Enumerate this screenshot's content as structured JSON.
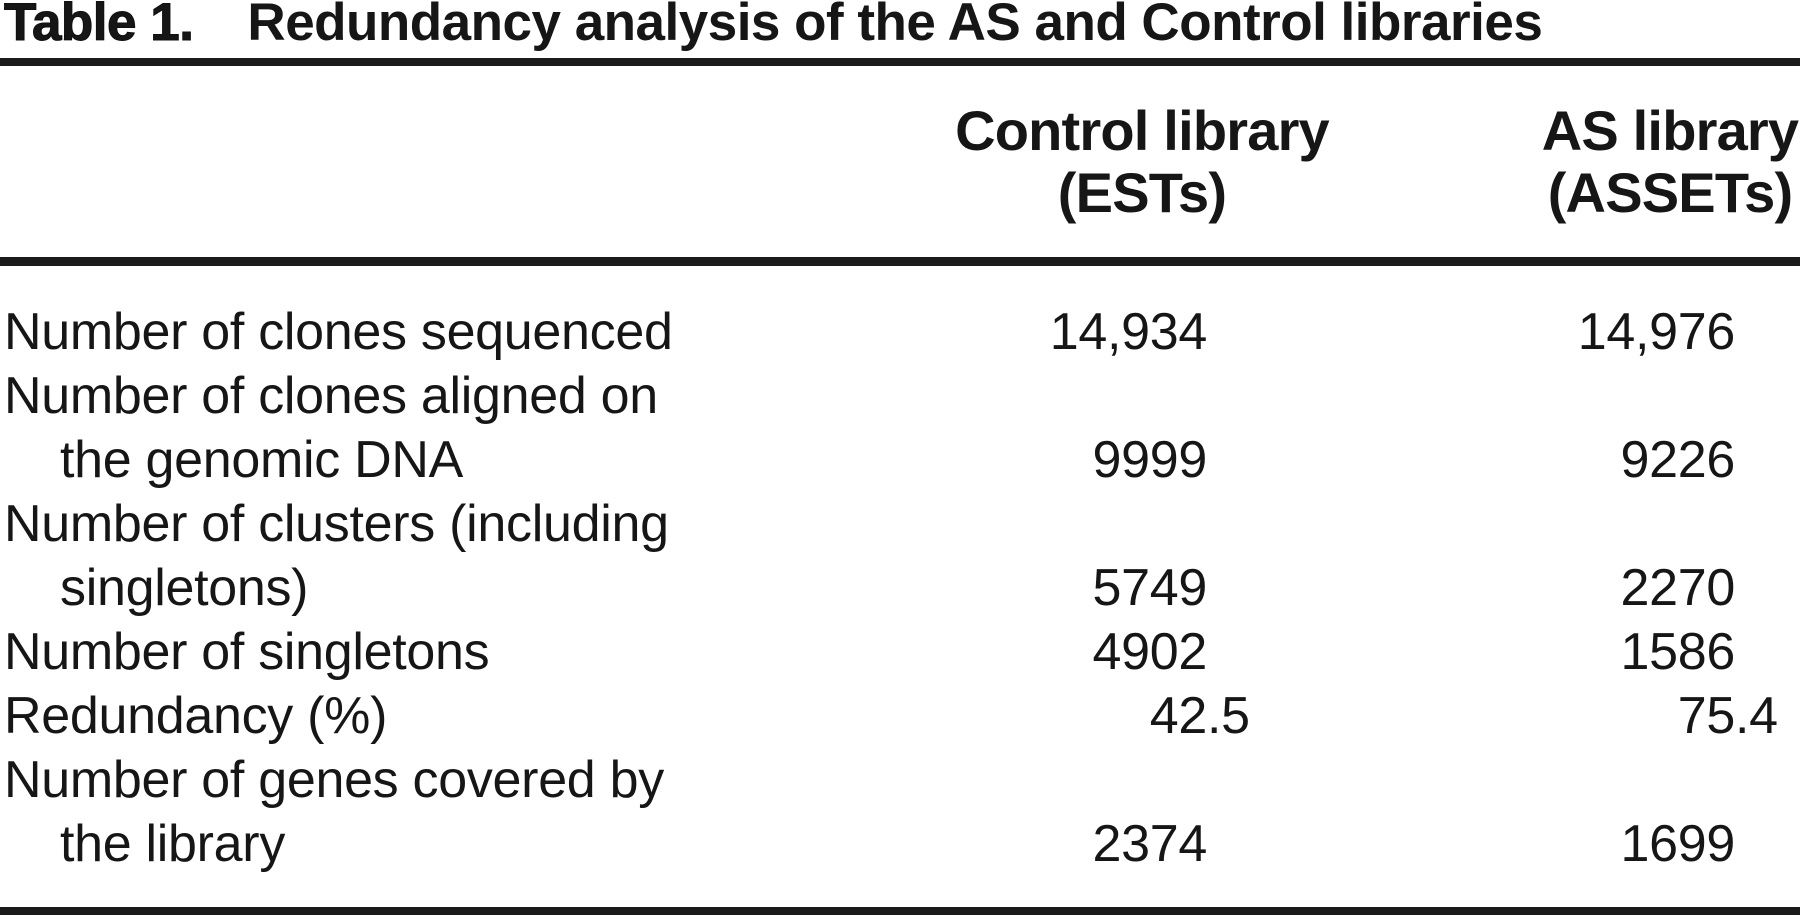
{
  "title": {
    "number": "Table 1.",
    "caption": "Redundancy analysis of the AS and Control libraries"
  },
  "table": {
    "columns": [
      {
        "id": "control",
        "lines": [
          "Control library",
          "(ESTs)"
        ]
      },
      {
        "id": "as",
        "lines": [
          "AS library",
          "(ASSETs)"
        ]
      }
    ],
    "rows": [
      {
        "label_lines": [
          "Number of clones sequenced"
        ],
        "control": "14,934",
        "as": "14,976"
      },
      {
        "label_lines": [
          "Number of clones aligned on",
          "the genomic DNA"
        ],
        "control": "9999",
        "as": "9226"
      },
      {
        "label_lines": [
          "Number of clusters (including",
          "singletons)"
        ],
        "control": "5749",
        "as": "2270"
      },
      {
        "label_lines": [
          "Number of singletons"
        ],
        "control": "4902",
        "as": "1586"
      },
      {
        "label_lines": [
          "Redundancy (%)"
        ],
        "control": "42.5",
        "as": "75.4"
      },
      {
        "label_lines": [
          "Number of genes covered by",
          "the library"
        ],
        "control": "2374",
        "as": "1699"
      }
    ]
  },
  "chart_data": {
    "type": "table",
    "title": "Table 1. Redundancy analysis of the AS and Control libraries",
    "columns": [
      "",
      "Control library (ESTs)",
      "AS library (ASSETs)"
    ],
    "rows": [
      [
        "Number of clones sequenced",
        14934,
        14976
      ],
      [
        "Number of clones aligned on the genomic DNA",
        9999,
        9226
      ],
      [
        "Number of clusters (including singletons)",
        5749,
        2270
      ],
      [
        "Number of singletons",
        4902,
        1586
      ],
      [
        "Redundancy (%)",
        42.5,
        75.4
      ],
      [
        "Number of genes covered by the library",
        2374,
        1699
      ]
    ]
  }
}
